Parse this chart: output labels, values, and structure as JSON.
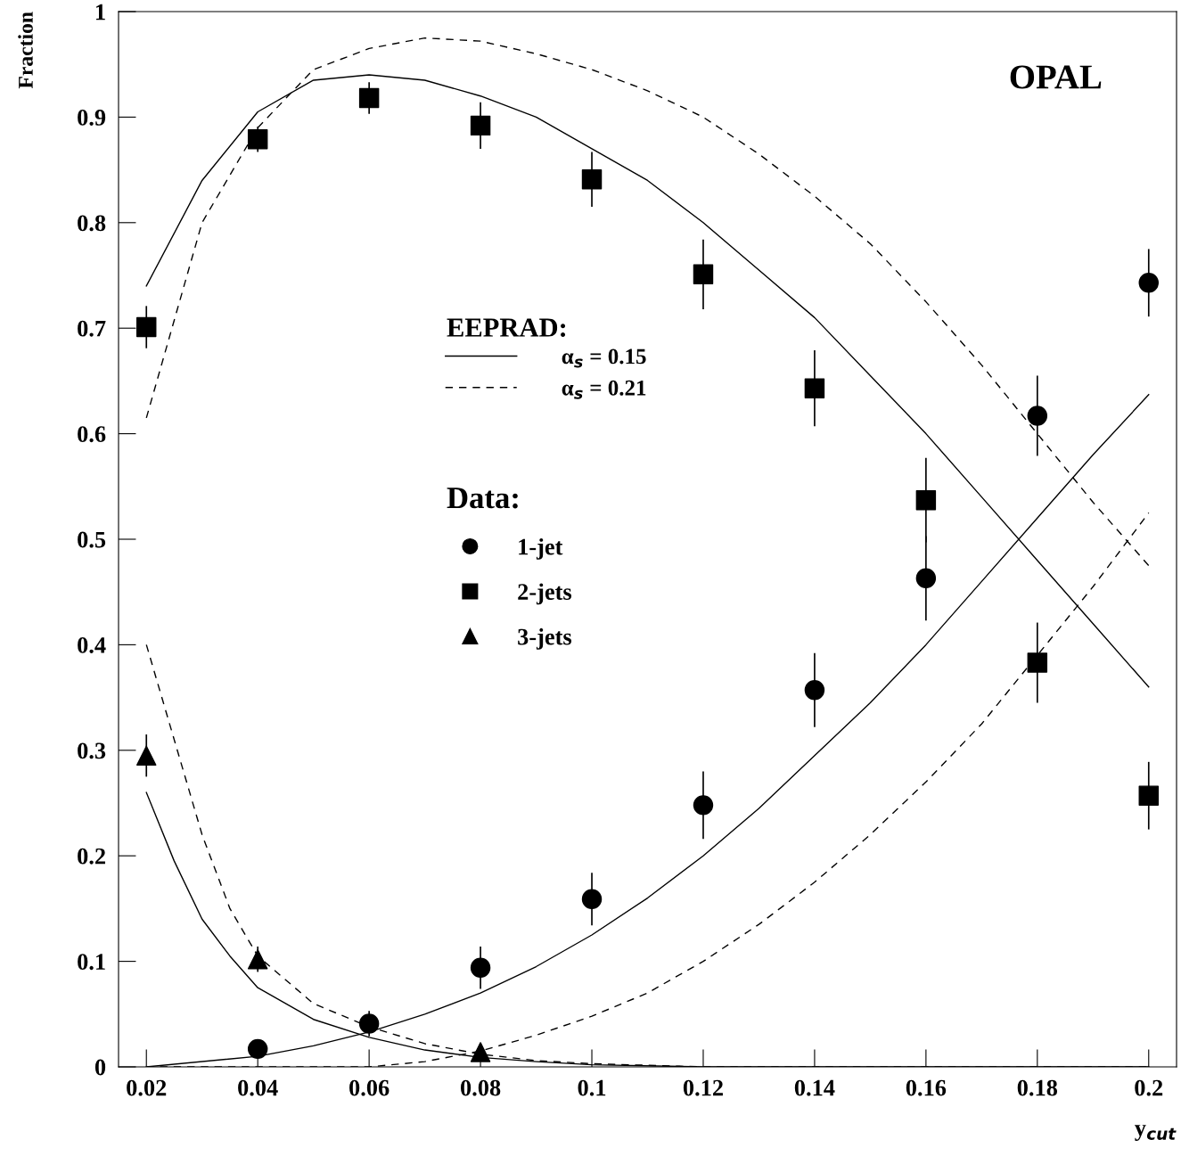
{
  "chart_data": {
    "type": "scatter",
    "xlabel": "y$_{cut}$",
    "ylabel": "Fraction",
    "xlim": [
      0.015,
      0.205
    ],
    "ylim": [
      0,
      1
    ],
    "xticks": [
      0.02,
      0.04,
      0.06,
      0.08,
      0.1,
      0.12,
      0.14,
      0.16,
      0.18,
      0.2
    ],
    "yticks": [
      0,
      0.1,
      0.2,
      0.3,
      0.4,
      0.5,
      0.6,
      0.7,
      0.8,
      0.9,
      1
    ],
    "grid": false,
    "legend": "center",
    "legend_title": "Data:",
    "annotations": [
      "OPAL",
      "EEPRAD:"
    ],
    "series": [
      {
        "type": "line",
        "name": "α$_{s}$ = 0.15",
        "color": "#000000",
        "line_style": "solid",
        "marker": "none",
        "x": [
          0.02,
          0.03,
          0.04,
          0.05,
          0.06,
          0.07,
          0.08,
          0.09,
          0.1,
          0.11,
          0.12,
          0.13,
          0.14,
          0.15,
          0.16,
          0.17,
          0.18,
          0.19,
          0.2
        ],
        "values": [
          0.74,
          0.84,
          0.905,
          0.935,
          0.94,
          0.935,
          0.92,
          0.9,
          0.87,
          0.84,
          0.8,
          0.755,
          0.71,
          0.655,
          0.6,
          0.54,
          0.48,
          0.42,
          0.36
        ]
      },
      {
        "type": "line",
        "name": "α$_{s}$ = 0.21",
        "color": "#000000",
        "line_style": "dashed",
        "marker": "none",
        "x": [
          0.02,
          0.03,
          0.04,
          0.05,
          0.06,
          0.07,
          0.08,
          0.09,
          0.1,
          0.11,
          0.12,
          0.13,
          0.14,
          0.15,
          0.16,
          0.17,
          0.18,
          0.19,
          0.2
        ],
        "values": [
          0.615,
          0.8,
          0.89,
          0.945,
          0.965,
          0.975,
          0.972,
          0.96,
          0.945,
          0.925,
          0.9,
          0.865,
          0.825,
          0.78,
          0.725,
          0.665,
          0.6,
          0.535,
          0.475
        ]
      },
      {
        "type": "line",
        "color": "#000000",
        "line_style": "solid",
        "marker": "none",
        "x": [
          0.02,
          0.04,
          0.05,
          0.06,
          0.07,
          0.08,
          0.09,
          0.1,
          0.11,
          0.12,
          0.13,
          0.14,
          0.15,
          0.16,
          0.17,
          0.18,
          0.19,
          0.2
        ],
        "values": [
          0,
          0.01,
          0.02,
          0.033,
          0.05,
          0.07,
          0.095,
          0.125,
          0.16,
          0.2,
          0.245,
          0.295,
          0.345,
          0.4,
          0.46,
          0.52,
          0.58,
          0.637
        ]
      },
      {
        "type": "line",
        "color": "#000000",
        "line_style": "dashed",
        "marker": "none",
        "x": [
          0.02,
          0.06,
          0.07,
          0.08,
          0.09,
          0.1,
          0.11,
          0.12,
          0.13,
          0.14,
          0.15,
          0.16,
          0.17,
          0.18,
          0.19,
          0.2
        ],
        "values": [
          0,
          0,
          0.005,
          0.015,
          0.03,
          0.048,
          0.07,
          0.1,
          0.135,
          0.175,
          0.22,
          0.27,
          0.325,
          0.39,
          0.455,
          0.525
        ]
      },
      {
        "type": "line",
        "color": "#000000",
        "line_style": "solid",
        "marker": "none",
        "x": [
          0.02,
          0.025,
          0.03,
          0.035,
          0.04,
          0.05,
          0.06,
          0.07,
          0.08,
          0.09,
          0.1,
          0.12,
          0.2
        ],
        "values": [
          0.26,
          0.195,
          0.14,
          0.105,
          0.075,
          0.045,
          0.028,
          0.016,
          0.009,
          0.005,
          0.002,
          0,
          0
        ]
      },
      {
        "type": "line",
        "color": "#000000",
        "line_style": "dashed",
        "marker": "none",
        "x": [
          0.02,
          0.025,
          0.03,
          0.035,
          0.04,
          0.05,
          0.06,
          0.07,
          0.08,
          0.09,
          0.1,
          0.12,
          0.2
        ],
        "values": [
          0.4,
          0.31,
          0.22,
          0.15,
          0.105,
          0.06,
          0.038,
          0.022,
          0.012,
          0.006,
          0.003,
          0,
          0
        ]
      },
      {
        "name": "1-jet",
        "color": "#000000",
        "marker": "circle",
        "x": [
          0.04,
          0.06,
          0.08,
          0.1,
          0.12,
          0.14,
          0.16,
          0.18,
          0.2
        ],
        "values": [
          0.017,
          0.041,
          0.094,
          0.159,
          0.248,
          0.357,
          0.463,
          0.617,
          0.743
        ],
        "errors": [
          0.005,
          0.012,
          0.02,
          0.025,
          0.032,
          0.035,
          0.04,
          0.038,
          0.032
        ]
      },
      {
        "name": "2-jets",
        "color": "#000000",
        "marker": "square",
        "x": [
          0.02,
          0.04,
          0.06,
          0.08,
          0.1,
          0.12,
          0.14,
          0.16,
          0.18,
          0.2
        ],
        "values": [
          0.701,
          0.879,
          0.918,
          0.892,
          0.841,
          0.751,
          0.643,
          0.537,
          0.383,
          0.257
        ],
        "errors": [
          0.02,
          0.012,
          0.015,
          0.022,
          0.026,
          0.033,
          0.036,
          0.04,
          0.038,
          0.032
        ]
      },
      {
        "name": "3-jets",
        "color": "#000000",
        "marker": "triangle",
        "x": [
          0.02,
          0.04,
          0.08
        ],
        "values": [
          0.295,
          0.102,
          0.014
        ],
        "errors": [
          0.02,
          0.012,
          0.003
        ]
      }
    ]
  }
}
